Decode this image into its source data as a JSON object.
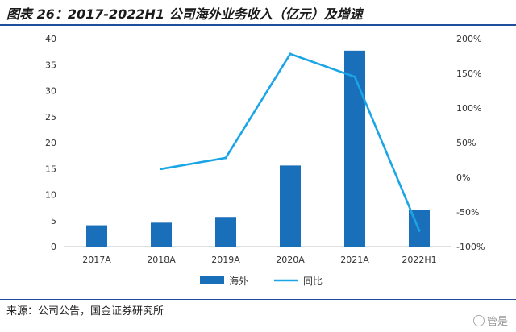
{
  "title": "图表 26：2017-2022H1 公司海外业务收入（亿元）及增速",
  "source": "来源：公司公告，国金证券研究所",
  "watermark": "管是",
  "chart_data": {
    "type": "bar",
    "categories": [
      "2017A",
      "2018A",
      "2019A",
      "2020A",
      "2021A",
      "2022H1"
    ],
    "series": [
      {
        "name": "海外",
        "type": "bar",
        "axis": "left",
        "values": [
          4.1,
          4.6,
          5.7,
          15.6,
          37.7,
          7.1
        ],
        "color": "#1a6fba"
      },
      {
        "name": "同比",
        "type": "line",
        "axis": "right",
        "values": [
          null,
          12,
          28,
          178,
          145,
          -77
        ],
        "color": "#1aa5e6"
      }
    ],
    "y_left": {
      "min": 0,
      "max": 40,
      "ticks": [
        0,
        5,
        10,
        15,
        20,
        25,
        30,
        35,
        40
      ]
    },
    "y_right": {
      "min": -100,
      "max": 200,
      "ticks": [
        -100,
        -50,
        0,
        50,
        100,
        150,
        200
      ],
      "tick_labels": [
        "-100%",
        "-50%",
        "0%",
        "50%",
        "100%",
        "150%",
        "200%"
      ]
    },
    "legend": {
      "position": "bottom",
      "items": [
        "海外",
        "同比"
      ]
    },
    "grid": false
  }
}
